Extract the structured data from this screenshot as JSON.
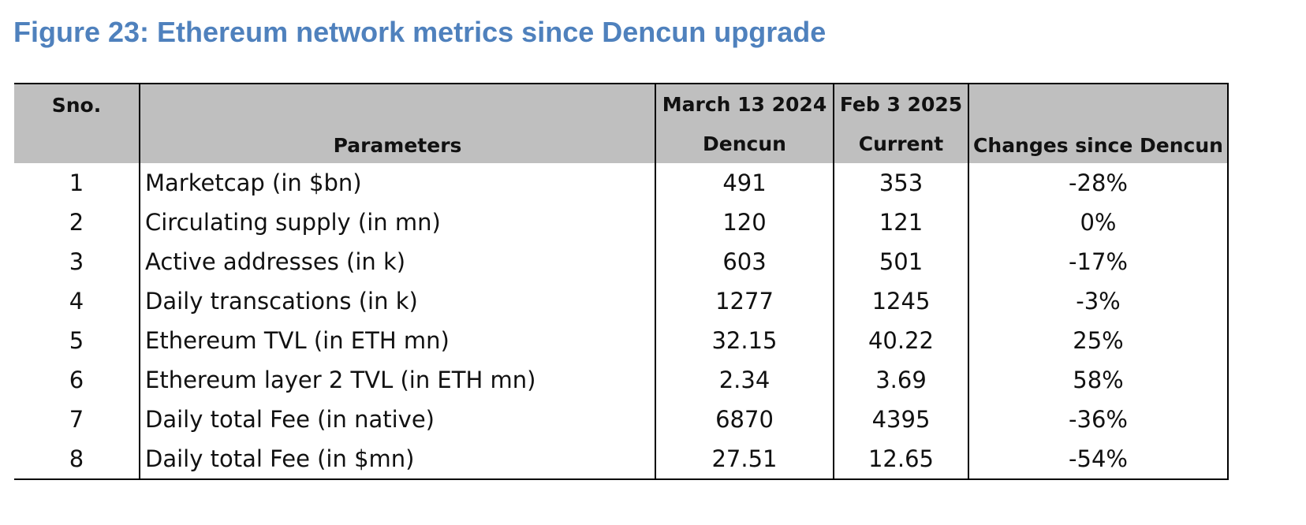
{
  "title": "Figure 23: Ethereum network metrics since Dencun upgrade",
  "chart_data": {
    "type": "table",
    "title": "Figure 23: Ethereum network metrics since Dencun upgrade",
    "header": {
      "sno": "Sno.",
      "parameters": "Parameters",
      "date1": "March 13 2024",
      "date1_sub": "Dencun",
      "date2": "Feb 3 2025",
      "date2_sub": "Current",
      "change": "Changes since Dencun"
    },
    "rows": [
      {
        "sno": "1",
        "parameter": "Marketcap (in $bn)",
        "dencun": "491",
        "current": "353",
        "change": "-28%"
      },
      {
        "sno": "2",
        "parameter": "Circulating supply (in mn)",
        "dencun": "120",
        "current": "121",
        "change": "0%"
      },
      {
        "sno": "3",
        "parameter": "Active addresses (in k)",
        "dencun": "603",
        "current": "501",
        "change": "-17%"
      },
      {
        "sno": "4",
        "parameter": "Daily transcations (in k)",
        "dencun": "1277",
        "current": "1245",
        "change": "-3%"
      },
      {
        "sno": "5",
        "parameter": "Ethereum TVL (in ETH mn)",
        "dencun": "32.15",
        "current": "40.22",
        "change": "25%"
      },
      {
        "sno": "6",
        "parameter": "Ethereum layer 2 TVL (in ETH mn)",
        "dencun": "2.34",
        "current": "3.69",
        "change": "58%"
      },
      {
        "sno": "7",
        "parameter": "Daily total Fee (in native)",
        "dencun": "6870",
        "current": "4395",
        "change": "-36%"
      },
      {
        "sno": "8",
        "parameter": "Daily total Fee (in $mn)",
        "dencun": "27.51",
        "current": "12.65",
        "change": "-54%"
      }
    ]
  },
  "colors": {
    "title": "#4f81bd",
    "header_bg": "#bfbfbf",
    "border": "#000000"
  }
}
